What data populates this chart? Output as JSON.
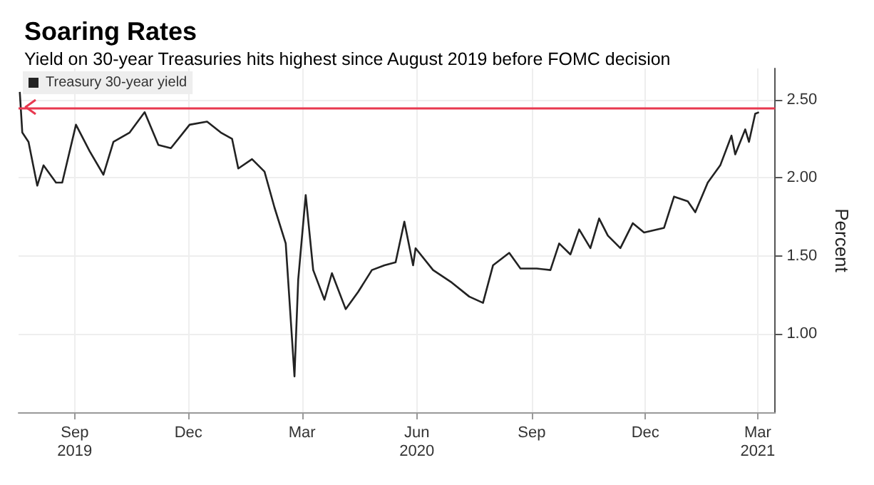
{
  "chart_data": {
    "type": "line",
    "title": "Soaring Rates",
    "subtitle": "Yield on 30-year Treasuries hits highest since August 2019 before FOMC decision",
    "ylabel": "Percent",
    "x": [
      "2019-08-02",
      "2019-08-04",
      "2019-08-09",
      "2019-08-16",
      "2019-08-21",
      "2019-08-31",
      "2019-09-05",
      "2019-09-16",
      "2019-09-27",
      "2019-10-08",
      "2019-10-16",
      "2019-10-29",
      "2019-11-10",
      "2019-11-21",
      "2019-12-01",
      "2019-12-16",
      "2019-12-30",
      "2020-01-10",
      "2020-01-19",
      "2020-01-24",
      "2020-02-04",
      "2020-02-14",
      "2020-02-22",
      "2020-03-02",
      "2020-03-09",
      "2020-03-12",
      "2020-03-18",
      "2020-03-24",
      "2020-04-02",
      "2020-04-08",
      "2020-04-19",
      "2020-04-29",
      "2020-05-10",
      "2020-05-20",
      "2020-05-29",
      "2020-06-05",
      "2020-06-12",
      "2020-06-14",
      "2020-06-28",
      "2020-07-13",
      "2020-07-27",
      "2020-08-07",
      "2020-08-15",
      "2020-08-28",
      "2020-09-06",
      "2020-09-19",
      "2020-09-30",
      "2020-10-07",
      "2020-10-16",
      "2020-10-23",
      "2020-11-01",
      "2020-11-08",
      "2020-11-15",
      "2020-11-25",
      "2020-12-05",
      "2020-12-14",
      "2020-12-30",
      "2021-01-07",
      "2021-01-18",
      "2021-01-24",
      "2021-02-03",
      "2021-02-13",
      "2021-02-22",
      "2021-02-25",
      "2021-03-05",
      "2021-03-08",
      "2021-03-13",
      "2021-03-16"
    ],
    "series": [
      {
        "name": "Treasury 30-year yield",
        "color": "#222222",
        "values": [
          2.55,
          2.29,
          2.23,
          1.95,
          2.08,
          1.97,
          1.97,
          2.34,
          2.17,
          2.02,
          2.23,
          2.29,
          2.42,
          2.21,
          2.19,
          2.34,
          2.36,
          2.29,
          2.25,
          2.06,
          2.12,
          2.04,
          1.81,
          1.58,
          0.73,
          1.35,
          1.89,
          1.41,
          1.22,
          1.39,
          1.16,
          1.27,
          1.41,
          1.44,
          1.46,
          1.72,
          1.44,
          1.55,
          1.41,
          1.33,
          1.24,
          1.2,
          1.44,
          1.52,
          1.42,
          1.42,
          1.41,
          1.58,
          1.51,
          1.67,
          1.55,
          1.74,
          1.63,
          1.55,
          1.71,
          1.65,
          1.68,
          1.88,
          1.85,
          1.78,
          1.97,
          2.08,
          2.27,
          2.15,
          2.31,
          2.23,
          2.41,
          2.42
        ]
      }
    ],
    "xlim": [
      "2019-08-01",
      "2021-03-29"
    ],
    "xticks": [
      {
        "value": "2019-09-15",
        "label": "Sep\n2019"
      },
      {
        "value": "2019-12-15",
        "label": "Dec"
      },
      {
        "value": "2020-03-15",
        "label": "Mar"
      },
      {
        "value": "2020-06-15",
        "label": "Jun\n2020"
      },
      {
        "value": "2020-09-15",
        "label": "Sep"
      },
      {
        "value": "2020-12-15",
        "label": "Dec"
      },
      {
        "value": "2021-03-15",
        "label": "Mar\n2021"
      }
    ],
    "ylim": [
      0.5,
      2.7
    ],
    "yticks": [
      {
        "value": 1,
        "label": "1.00"
      },
      {
        "value": 1.5,
        "label": "1.50"
      },
      {
        "value": 2,
        "label": "2.00"
      },
      {
        "value": 2.5,
        "label": "2.50"
      }
    ],
    "ref_lines": [
      {
        "axis": "y",
        "value": 2.45,
        "color": "#e8384f"
      }
    ],
    "grid": true,
    "legend": "top left",
    "marker": "none",
    "line_style": "solid"
  }
}
